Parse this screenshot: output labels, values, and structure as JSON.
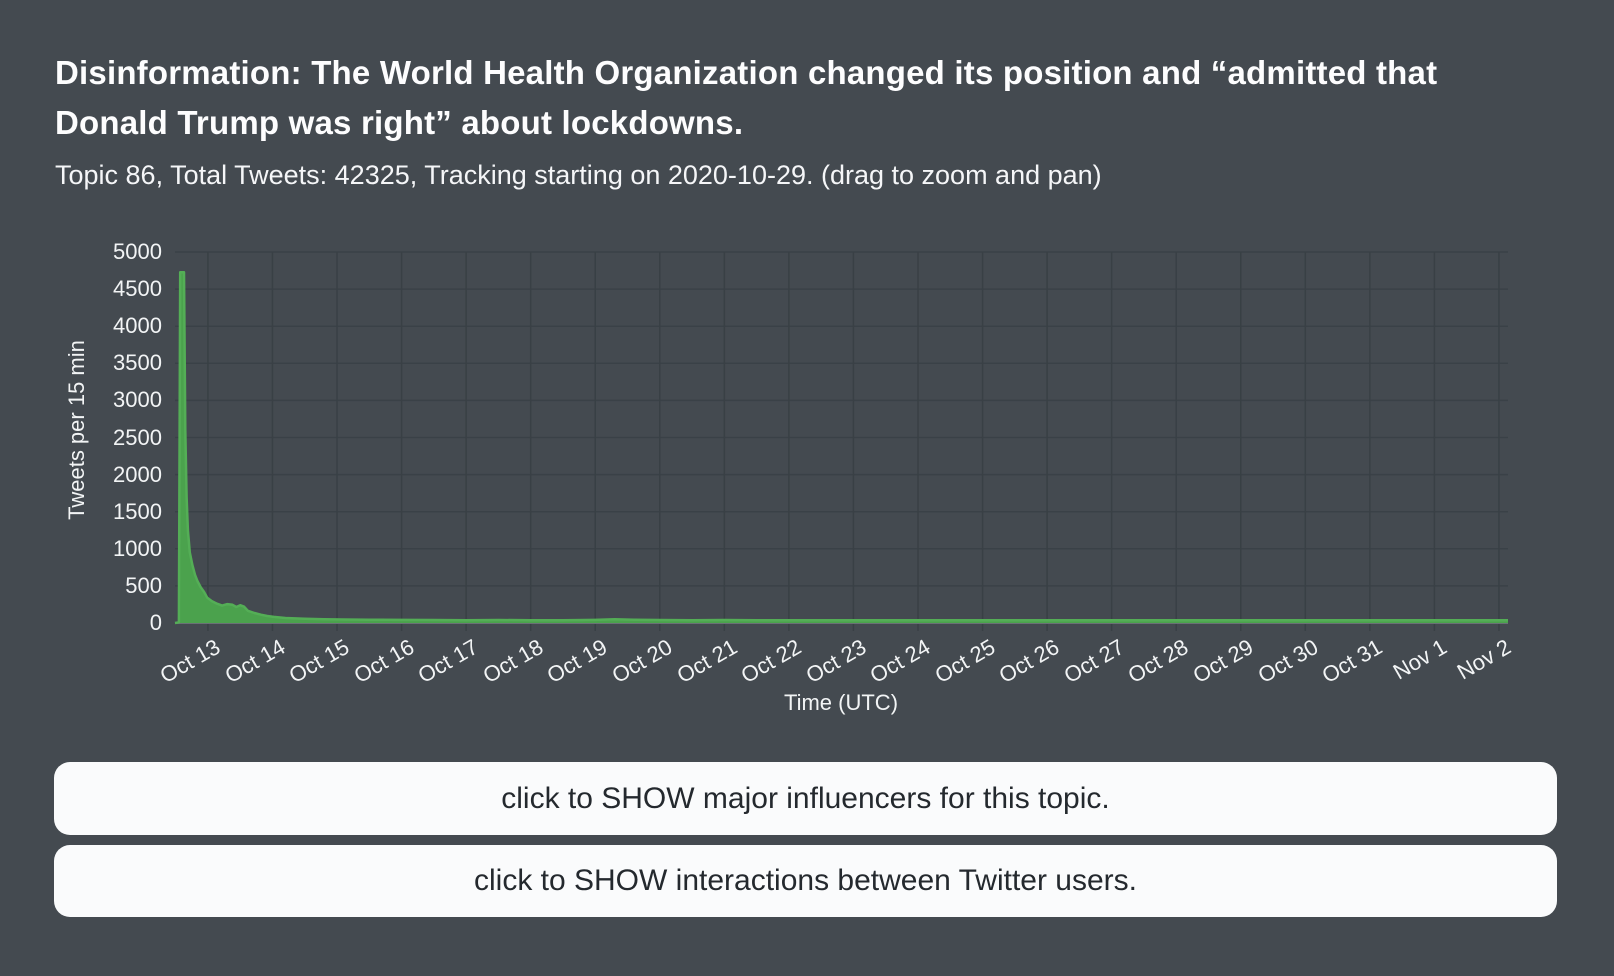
{
  "header": {
    "title": "Disinformation: The World Health Organization changed its position and “admitted that Donald Trump was right” about lockdowns.",
    "subtitle": "Topic 86, Total Tweets: 42325, Tracking starting on 2020-10-29. (drag to zoom and pan)"
  },
  "colors": {
    "background": "#444a50",
    "grid": "#3a4147",
    "axis": "#6a7076",
    "area_fill": "#4ba24d",
    "area_line": "#54ae56",
    "button_bg": "#fafbfc",
    "button_text": "#24292e",
    "text": "#f2f4f5"
  },
  "chart_data": {
    "type": "area",
    "title": "",
    "xlabel": "Time (UTC)",
    "ylabel": "Tweets per 15 min",
    "grid": true,
    "legend": "none",
    "ylim": [
      0,
      5000
    ],
    "y_tick_step": 500,
    "x_tick_labels": [
      "Oct 13",
      "Oct 14",
      "Oct 15",
      "Oct 16",
      "Oct 17",
      "Oct 18",
      "Oct 19",
      "Oct 20",
      "Oct 21",
      "Oct 22",
      "Oct 23",
      "Oct 24",
      "Oct 25",
      "Oct 26",
      "Oct 27",
      "Oct 28",
      "Oct 29",
      "Oct 30",
      "Oct 31",
      "Nov 1",
      "Nov 2"
    ],
    "x_unit": "days relative to Oct 13 00:00 UTC (x ticks at integer days 0..20)",
    "x_axis_days_range": [
      -0.51,
      20.14
    ],
    "series": [
      {
        "name": "Tweets per 15 min",
        "color_fill": "#4ba24d",
        "color_line": "#54ae56",
        "peak_value": 4726,
        "points": [
          [
            -0.51,
            0
          ],
          [
            -0.45,
            10
          ],
          [
            -0.43,
            4726
          ],
          [
            -0.37,
            4726
          ],
          [
            -0.35,
            2600
          ],
          [
            -0.33,
            1700
          ],
          [
            -0.31,
            1250
          ],
          [
            -0.28,
            950
          ],
          [
            -0.24,
            780
          ],
          [
            -0.2,
            650
          ],
          [
            -0.16,
            560
          ],
          [
            -0.11,
            480
          ],
          [
            -0.06,
            420
          ],
          [
            -0.01,
            340
          ],
          [
            0.06,
            295
          ],
          [
            0.14,
            260
          ],
          [
            0.22,
            235
          ],
          [
            0.3,
            255
          ],
          [
            0.38,
            245
          ],
          [
            0.44,
            215
          ],
          [
            0.5,
            240
          ],
          [
            0.56,
            220
          ],
          [
            0.62,
            165
          ],
          [
            0.72,
            135
          ],
          [
            0.82,
            112
          ],
          [
            0.92,
            95
          ],
          [
            1.02,
            82
          ],
          [
            1.2,
            68
          ],
          [
            1.5,
            56
          ],
          [
            1.8,
            50
          ],
          [
            2.1,
            47
          ],
          [
            2.5,
            44
          ],
          [
            3.0,
            42
          ],
          [
            3.5,
            40
          ],
          [
            4.0,
            38
          ],
          [
            4.5,
            40
          ],
          [
            5.0,
            38
          ],
          [
            5.5,
            37
          ],
          [
            6.0,
            42
          ],
          [
            6.3,
            50
          ],
          [
            6.6,
            45
          ],
          [
            7.0,
            40
          ],
          [
            7.5,
            38
          ],
          [
            8.0,
            40
          ],
          [
            8.5,
            38
          ],
          [
            9.0,
            37
          ],
          [
            9.5,
            38
          ],
          [
            10.0,
            36
          ],
          [
            10.5,
            38
          ],
          [
            11.0,
            36
          ],
          [
            11.5,
            38
          ],
          [
            12.0,
            36
          ],
          [
            12.5,
            38
          ],
          [
            13.0,
            36
          ],
          [
            13.5,
            37
          ],
          [
            14.0,
            36
          ],
          [
            14.5,
            37
          ],
          [
            15.0,
            36
          ],
          [
            15.5,
            37
          ],
          [
            16.0,
            36
          ],
          [
            16.5,
            37
          ],
          [
            17.0,
            36
          ],
          [
            17.5,
            36
          ],
          [
            18.0,
            37
          ],
          [
            18.5,
            36
          ],
          [
            19.0,
            36
          ],
          [
            19.5,
            37
          ],
          [
            20.0,
            36
          ],
          [
            20.14,
            36
          ]
        ]
      }
    ]
  },
  "buttons": [
    {
      "label": "click to SHOW major influencers for this topic."
    },
    {
      "label": "click to SHOW interactions between Twitter users."
    }
  ]
}
